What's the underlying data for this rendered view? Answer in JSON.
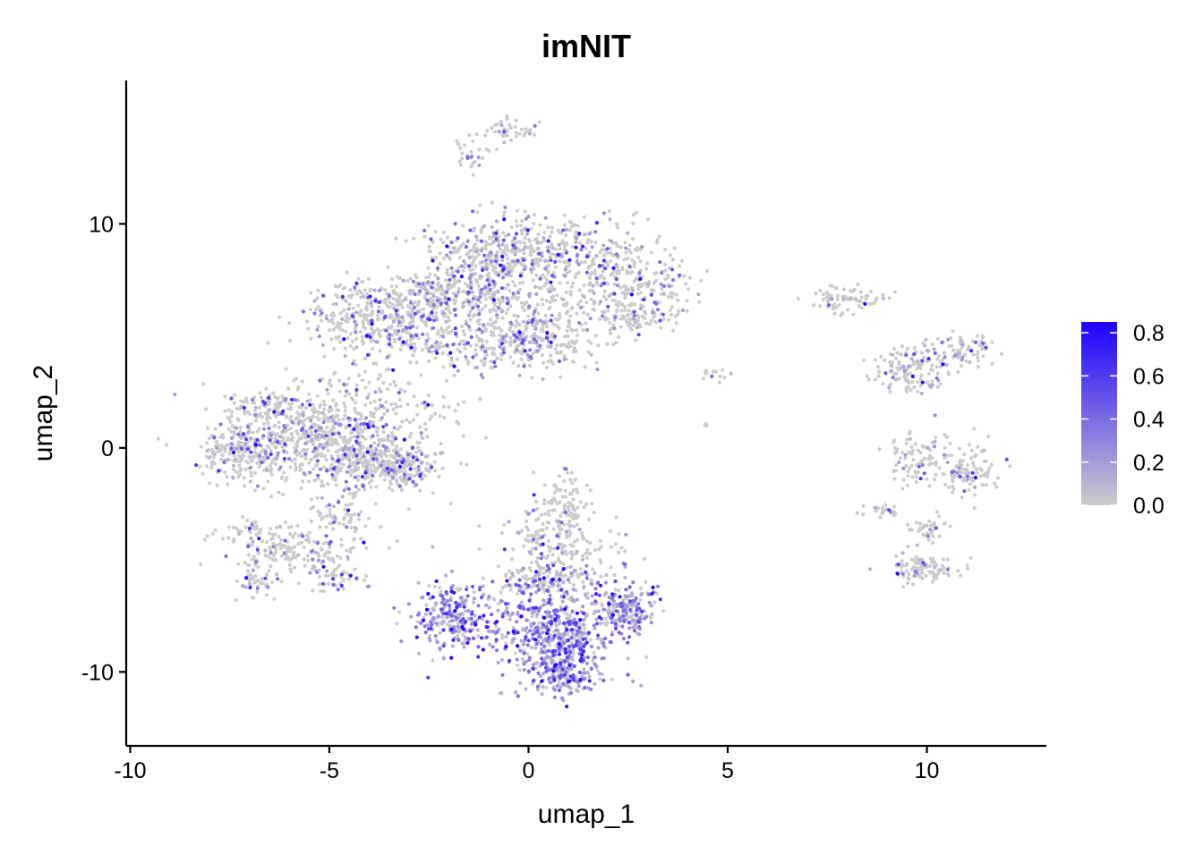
{
  "chart_data": {
    "type": "scatter",
    "title": "imNIT",
    "xlabel": "umap_1",
    "ylabel": "umap_2",
    "xlim": [
      -10.1,
      13.0
    ],
    "ylim": [
      -13.3,
      16.4
    ],
    "x_ticks": [
      {
        "value": -10,
        "label": "-10"
      },
      {
        "value": -5,
        "label": "-5"
      },
      {
        "value": 0,
        "label": "0"
      },
      {
        "value": 5,
        "label": "5"
      },
      {
        "value": 10,
        "label": "10"
      }
    ],
    "y_ticks": [
      {
        "value": -10,
        "label": "-10"
      },
      {
        "value": 0,
        "label": "0"
      },
      {
        "value": 10,
        "label": "10"
      }
    ],
    "grid": false,
    "legend": {
      "placement": "right",
      "type": "colorbar",
      "range": [
        0,
        0.85
      ],
      "ticks": [
        {
          "value": 0.0,
          "label": "0.0"
        },
        {
          "value": 0.2,
          "label": "0.2"
        },
        {
          "value": 0.4,
          "label": "0.4"
        },
        {
          "value": 0.6,
          "label": "0.6"
        },
        {
          "value": 0.8,
          "label": "0.8"
        }
      ],
      "color_low": "#cccccc",
      "color_high": "#1e00ff"
    },
    "cell_clusters": [
      {
        "cx": -1.4,
        "cy": 13.1,
        "sx": 0.25,
        "sy": 0.45,
        "n": 30,
        "expr": 0.08
      },
      {
        "cx": -0.4,
        "cy": 14.1,
        "sx": 0.35,
        "sy": 0.3,
        "n": 40,
        "expr": 0.12
      },
      {
        "cx": 0.3,
        "cy": 8.9,
        "sx": 1.4,
        "sy": 0.7,
        "n": 380,
        "expr": 0.12
      },
      {
        "cx": -1.0,
        "cy": 7.5,
        "sx": 0.8,
        "sy": 0.9,
        "n": 300,
        "expr": 0.12
      },
      {
        "cx": -2.5,
        "cy": 6.8,
        "sx": 0.6,
        "sy": 0.5,
        "n": 150,
        "expr": 0.1
      },
      {
        "cx": -3.8,
        "cy": 5.6,
        "sx": 1.0,
        "sy": 0.7,
        "n": 320,
        "expr": 0.1
      },
      {
        "cx": -0.8,
        "cy": 4.6,
        "sx": 1.4,
        "sy": 0.6,
        "n": 300,
        "expr": 0.1
      },
      {
        "cx": 0.3,
        "cy": 5.5,
        "sx": 0.5,
        "sy": 0.8,
        "n": 150,
        "expr": 0.12
      },
      {
        "cx": 2.3,
        "cy": 7.3,
        "sx": 0.9,
        "sy": 0.8,
        "n": 230,
        "expr": 0.08
      },
      {
        "cx": 2.8,
        "cy": 5.9,
        "sx": 0.5,
        "sy": 0.35,
        "n": 90,
        "expr": 0.06
      },
      {
        "cx": -4.2,
        "cy": 7.0,
        "sx": 0.5,
        "sy": 0.25,
        "n": 40,
        "expr": 0.06
      },
      {
        "cx": -5.5,
        "cy": 0.8,
        "sx": 1.2,
        "sy": 0.9,
        "n": 500,
        "expr": 0.09
      },
      {
        "cx": -4.2,
        "cy": -0.5,
        "sx": 0.9,
        "sy": 0.8,
        "n": 350,
        "expr": 0.1
      },
      {
        "cx": -3.2,
        "cy": -0.8,
        "sx": 0.5,
        "sy": 0.4,
        "n": 140,
        "expr": 0.08
      },
      {
        "cx": -6.6,
        "cy": 2.0,
        "sx": 0.4,
        "sy": 0.3,
        "n": 60,
        "expr": 0.12
      },
      {
        "cx": -7.6,
        "cy": -0.4,
        "sx": 0.3,
        "sy": 0.5,
        "n": 70,
        "expr": 0.08
      },
      {
        "cx": -6.8,
        "cy": -0.4,
        "sx": 0.5,
        "sy": 0.6,
        "n": 120,
        "expr": 0.08
      },
      {
        "cx": -5.8,
        "cy": -4.5,
        "sx": 0.9,
        "sy": 0.5,
        "n": 170,
        "expr": 0.1
      },
      {
        "cx": -4.8,
        "cy": -5.8,
        "sx": 0.4,
        "sy": 0.3,
        "n": 50,
        "expr": 0.12
      },
      {
        "cx": -6.8,
        "cy": -5.9,
        "sx": 0.3,
        "sy": 0.4,
        "n": 50,
        "expr": 0.08
      },
      {
        "cx": -7.3,
        "cy": -3.6,
        "sx": 0.3,
        "sy": 0.15,
        "n": 20,
        "expr": 0.03
      },
      {
        "cx": -4.8,
        "cy": -3.0,
        "sx": 0.4,
        "sy": 0.5,
        "n": 60,
        "expr": 0.1
      },
      {
        "cx": -4.0,
        "cy": 3.0,
        "sx": 0.6,
        "sy": 0.5,
        "n": 50,
        "expr": 0.06
      },
      {
        "cx": -2.5,
        "cy": 1.8,
        "sx": 0.6,
        "sy": 0.3,
        "n": 30,
        "expr": 0.06
      },
      {
        "cx": 0.8,
        "cy": -4.3,
        "sx": 0.7,
        "sy": 1.2,
        "n": 220,
        "expr": 0.05
      },
      {
        "cx": 1.0,
        "cy": -2.3,
        "sx": 0.25,
        "sy": 0.8,
        "n": 70,
        "expr": 0.04
      },
      {
        "cx": -1.9,
        "cy": -7.6,
        "sx": 0.55,
        "sy": 0.8,
        "n": 260,
        "expr": 0.35
      },
      {
        "cx": 0.7,
        "cy": -8.3,
        "sx": 0.75,
        "sy": 1.1,
        "n": 520,
        "expr": 0.35
      },
      {
        "cx": 0.9,
        "cy": -10.2,
        "sx": 0.4,
        "sy": 0.4,
        "n": 120,
        "expr": 0.35
      },
      {
        "cx": 2.4,
        "cy": -7.2,
        "sx": 0.4,
        "sy": 0.6,
        "n": 180,
        "expr": 0.32
      },
      {
        "cx": 0.3,
        "cy": -5.9,
        "sx": 0.7,
        "sy": 0.4,
        "n": 120,
        "expr": 0.2
      },
      {
        "cx": 8.0,
        "cy": 6.7,
        "sx": 0.4,
        "sy": 0.3,
        "n": 70,
        "expr": 0.05
      },
      {
        "cx": 9.6,
        "cy": 3.5,
        "sx": 0.5,
        "sy": 0.5,
        "n": 130,
        "expr": 0.1
      },
      {
        "cx": 10.9,
        "cy": 4.4,
        "sx": 0.4,
        "sy": 0.3,
        "n": 70,
        "expr": 0.15
      },
      {
        "cx": 9.7,
        "cy": -0.5,
        "sx": 0.35,
        "sy": 0.6,
        "n": 80,
        "expr": 0.06
      },
      {
        "cx": 11.0,
        "cy": -1.0,
        "sx": 0.4,
        "sy": 0.6,
        "n": 110,
        "expr": 0.06
      },
      {
        "cx": 9.9,
        "cy": -5.4,
        "sx": 0.5,
        "sy": 0.3,
        "n": 110,
        "expr": 0.05
      },
      {
        "cx": 10.0,
        "cy": -3.8,
        "sx": 0.25,
        "sy": 0.4,
        "n": 40,
        "expr": 0.04
      },
      {
        "cx": 8.9,
        "cy": -2.8,
        "sx": 0.3,
        "sy": 0.15,
        "n": 25,
        "expr": 0.04
      },
      {
        "cx": 4.7,
        "cy": 3.3,
        "sx": 0.2,
        "sy": 0.3,
        "n": 12,
        "expr": 0.1
      },
      {
        "cx": 4.45,
        "cy": 1.0,
        "sx": 0.05,
        "sy": 0.05,
        "n": 4,
        "expr": 0.0
      }
    ]
  }
}
